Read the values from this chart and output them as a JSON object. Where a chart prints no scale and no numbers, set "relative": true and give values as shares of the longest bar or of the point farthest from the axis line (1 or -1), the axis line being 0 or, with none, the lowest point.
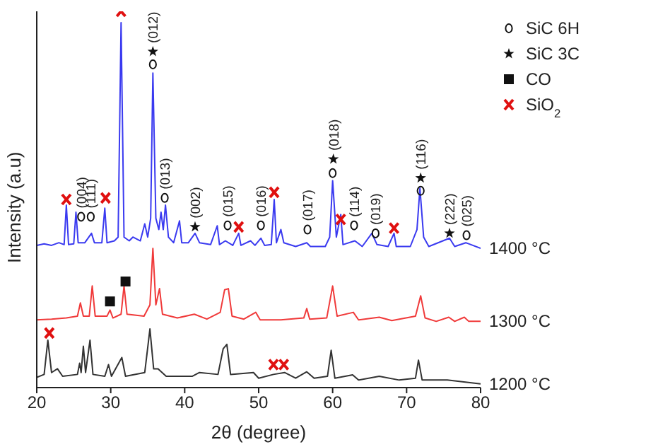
{
  "chart_data": {
    "type": "line",
    "relative": true,
    "xlabel": "2θ (degree)",
    "ylabel": "Intensity (a.u)",
    "xlim": [
      20,
      80
    ],
    "xticks": [
      20,
      30,
      40,
      50,
      60,
      70,
      80
    ],
    "legend": "top right",
    "grid": false,
    "series": [
      {
        "name": "1400 °C",
        "color": "#3a3af0",
        "x": [
          20,
          21,
          22,
          23,
          23.7,
          24.0,
          24.3,
          25.0,
          25.3,
          25.6,
          26.5,
          27.4,
          27.8,
          28.8,
          29.2,
          29.5,
          30.5,
          31.0,
          31.4,
          31.8,
          32.5,
          33.0,
          34.0,
          34.6,
          35.0,
          35.4,
          35.7,
          36.1,
          36.5,
          36.8,
          37.1,
          37.4,
          37.8,
          38.5,
          39.3,
          39.6,
          40.5,
          41.4,
          42.0,
          43.5,
          44.4,
          44.7,
          45.5,
          46.5,
          47.3,
          47.6,
          48.9,
          49.5,
          50.3,
          50.8,
          51.7,
          52.1,
          52.4,
          53.0,
          53.4,
          55,
          56.5,
          57,
          59.0,
          59.6,
          60.0,
          60.5,
          61.1,
          61.4,
          63.0,
          64,
          65.3,
          66,
          67.5,
          68.3,
          68.6,
          70.5,
          71.4,
          71.8,
          72.3,
          73,
          75.8,
          76.5,
          78,
          80
        ],
        "values": [
          0.378,
          0.382,
          0.378,
          0.385,
          0.38,
          0.485,
          0.38,
          0.382,
          0.466,
          0.385,
          0.385,
          0.41,
          0.385,
          0.385,
          0.477,
          0.385,
          0.39,
          0.4,
          0.97,
          0.4,
          0.39,
          0.4,
          0.39,
          0.435,
          0.4,
          0.45,
          0.836,
          0.45,
          0.42,
          0.466,
          0.42,
          0.485,
          0.4,
          0.385,
          0.443,
          0.385,
          0.385,
          0.41,
          0.385,
          0.38,
          0.43,
          0.38,
          0.39,
          0.378,
          0.41,
          0.378,
          0.39,
          0.378,
          0.397,
          0.378,
          0.38,
          0.5,
          0.385,
          0.42,
          0.385,
          0.375,
          0.385,
          0.375,
          0.375,
          0.4,
          0.55,
          0.4,
          0.46,
          0.38,
          0.39,
          0.375,
          0.41,
          0.38,
          0.375,
          0.41,
          0.375,
          0.375,
          0.42,
          0.53,
          0.4,
          0.375,
          0.397,
          0.375,
          0.385,
          0.37
        ]
      },
      {
        "name": "1300 °C",
        "color": "#f03a3a",
        "x": [
          20,
          22,
          24,
          25.5,
          25.9,
          26.3,
          27.1,
          27.5,
          27.9,
          29.5,
          29.9,
          30.3,
          31.4,
          31.8,
          32.2,
          34.5,
          35.3,
          35.7,
          36.1,
          36.6,
          37.0,
          39,
          41.3,
          43,
          44.8,
          45.4,
          45.9,
          46.4,
          48,
          49.6,
          50.2,
          53,
          56.1,
          56.5,
          56.9,
          59.2,
          60.0,
          60.6,
          62.8,
          63.5,
          66.3,
          68,
          71.2,
          71.9,
          72.5,
          74,
          75.7,
          76.5,
          77.8,
          78.4,
          80
        ],
        "values": [
          0.18,
          0.182,
          0.185,
          0.19,
          0.225,
          0.19,
          0.19,
          0.27,
          0.19,
          0.19,
          0.206,
          0.185,
          0.195,
          0.27,
          0.195,
          0.19,
          0.22,
          0.37,
          0.22,
          0.263,
          0.195,
          0.185,
          0.195,
          0.182,
          0.2,
          0.26,
          0.263,
          0.19,
          0.182,
          0.2,
          0.18,
          0.18,
          0.185,
          0.21,
          0.182,
          0.185,
          0.27,
          0.19,
          0.2,
          0.18,
          0.187,
          0.178,
          0.19,
          0.244,
          0.185,
          0.176,
          0.187,
          0.176,
          0.187,
          0.176,
          0.176
        ]
      },
      {
        "name": "1200 °C",
        "color": "#333333",
        "x": [
          20,
          21.0,
          21.5,
          22.0,
          22.8,
          23.5,
          25.5,
          25.8,
          26.0,
          26.3,
          26.6,
          27.2,
          27.6,
          29.2,
          29.7,
          30.1,
          31.5,
          32.0,
          34.6,
          35.3,
          35.8,
          36.4,
          37.5,
          41.0,
          42.0,
          44.5,
          45.2,
          45.7,
          46.2,
          49.3,
          50,
          52,
          53.5,
          55,
          56.5,
          57.5,
          59.3,
          59.8,
          60.3,
          62.7,
          63.5,
          66.3,
          69,
          71.2,
          71.6,
          72.1,
          75.5,
          80
        ],
        "values": [
          0.027,
          0.035,
          0.126,
          0.04,
          0.05,
          0.03,
          0.035,
          0.065,
          0.04,
          0.11,
          0.04,
          0.126,
          0.035,
          0.03,
          0.061,
          0.03,
          0.08,
          0.03,
          0.04,
          0.156,
          0.05,
          0.05,
          0.03,
          0.03,
          0.04,
          0.035,
          0.103,
          0.115,
          0.035,
          0.04,
          0.025,
          0.035,
          0.04,
          0.025,
          0.042,
          0.025,
          0.03,
          0.099,
          0.025,
          0.034,
          0.02,
          0.03,
          0.02,
          0.025,
          0.073,
          0.02,
          0.02,
          0.01
        ]
      },
      {
        "name": "SiC 6H",
        "type": "scatter",
        "marker": "circle",
        "color": "#111111",
        "x": [
          26.0,
          27.3,
          35.7,
          37.3,
          45.8,
          50.3,
          56.6,
          60.0,
          62.9,
          65.8,
          71.9,
          78.1
        ],
        "values": [
          0.454,
          0.454,
          0.859,
          0.504,
          0.431,
          0.431,
          0.42,
          0.57,
          0.431,
          0.41,
          0.523,
          0.405
        ]
      },
      {
        "name": "SiC 3C",
        "type": "scatter",
        "marker": "star",
        "color": "#111111",
        "x": [
          35.7,
          41.4,
          60.1,
          71.9,
          75.8
        ],
        "values": [
          0.893,
          0.427,
          0.607,
          0.557,
          0.41
        ]
      },
      {
        "name": "CO",
        "type": "scatter",
        "marker": "square",
        "color": "#111111",
        "x": [
          29.9,
          32.0
        ],
        "values": [
          0.229,
          0.282
        ]
      },
      {
        "name": "SiO$_{2}$",
        "type": "scatter",
        "marker": "cross",
        "color": "#e01010",
        "x": [
          21.7,
          24.0,
          29.3,
          31.4,
          47.3,
          52.1,
          52.0,
          53.4,
          61.1,
          68.3
        ],
        "values": [
          0.145,
          0.5,
          0.504,
          1,
          0.427,
          0.519,
          0.061,
          0.061,
          0.447,
          0.424
        ]
      }
    ],
    "annotations": [
      {
        "text": "(004)",
        "x": 26.0,
        "y": 0.454
      },
      {
        "text": "(111)",
        "x": 27.3,
        "y": 0.454
      },
      {
        "text": "(012)",
        "x": 35.7,
        "y": 0.893
      },
      {
        "text": "(013)",
        "x": 37.3,
        "y": 0.504
      },
      {
        "text": "(002)",
        "x": 41.4,
        "y": 0.427
      },
      {
        "text": "(015)",
        "x": 45.8,
        "y": 0.431
      },
      {
        "text": "(016)",
        "x": 50.3,
        "y": 0.431
      },
      {
        "text": "(017)",
        "x": 56.6,
        "y": 0.42
      },
      {
        "text": "(018)",
        "x": 60.1,
        "y": 0.607
      },
      {
        "text": "(114)",
        "x": 62.9,
        "y": 0.431
      },
      {
        "text": "(019)",
        "x": 65.8,
        "y": 0.41
      },
      {
        "text": "(116)",
        "x": 71.9,
        "y": 0.557
      },
      {
        "text": "(222)",
        "x": 75.8,
        "y": 0.41
      },
      {
        "text": "(025)",
        "x": 78.1,
        "y": 0.405
      }
    ]
  }
}
